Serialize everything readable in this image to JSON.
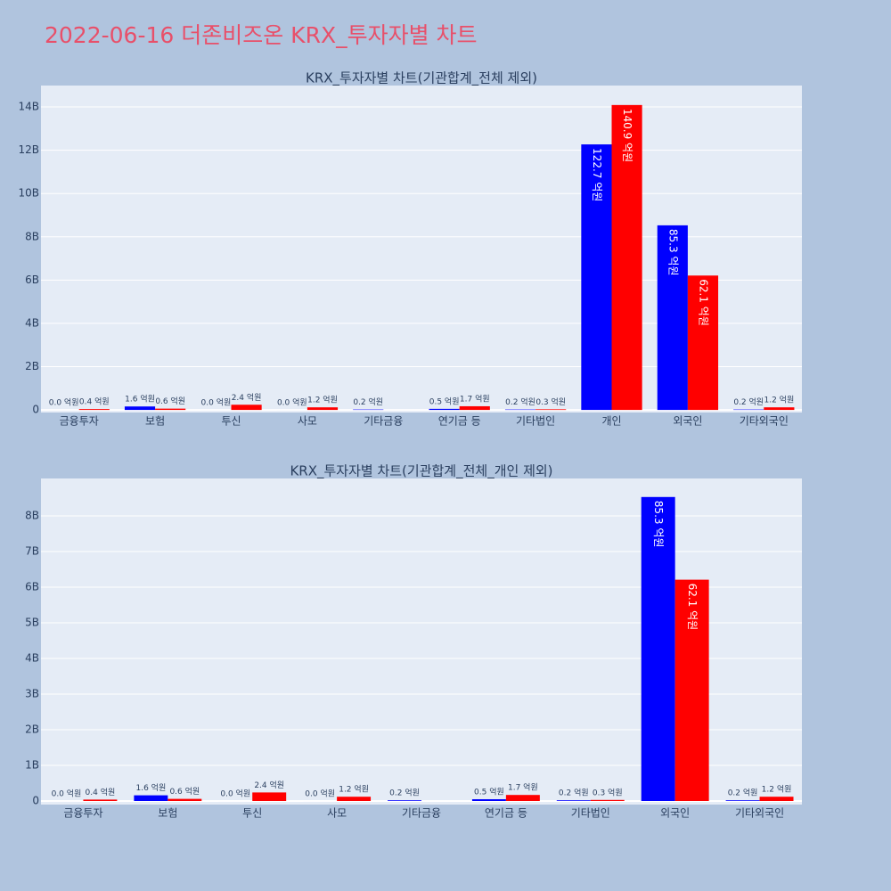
{
  "title": "2022-06-16 더존비즈온 KRX_투자자별 차트",
  "chart_data": [
    {
      "type": "bar",
      "title": "KRX_투자자별 차트(기관합계_전체 제외)",
      "categories": [
        "금융투자",
        "보험",
        "투신",
        "사모",
        "기타금융",
        "연기금 등",
        "기타법인",
        "개인",
        "외국인",
        "기타외국인"
      ],
      "series": [
        {
          "color": "#0000ff",
          "values": [
            0,
            160000000,
            0,
            0,
            20000000,
            50000000,
            20000000,
            12270000000,
            8530000000,
            20000000
          ],
          "value_labels": [
            "0.0 억원",
            "1.6 억원",
            "0.0 억원",
            "0.0 억원",
            "0.2 억원",
            "0.5 억원",
            "0.2 억원",
            "122.7 억원",
            "85.3 억원",
            "0.2 억원"
          ]
        },
        {
          "color": "#ff0000",
          "values": [
            40000000,
            60000000,
            240000000,
            120000000,
            null,
            170000000,
            30000000,
            14090000000,
            6210000000,
            120000000
          ],
          "value_labels": [
            "0.4 억원",
            "0.6 억원",
            "2.4 억원",
            "1.2 억원",
            null,
            "1.7 억원",
            "0.3 억원",
            "140.9 억원",
            "62.1 억원",
            "1.2 억원"
          ]
        }
      ],
      "ylim": [
        -120000000,
        14990000000
      ],
      "yticks": [
        0,
        {
          "value": 2000000000,
          "label": "2B"
        },
        {
          "value": 4000000000,
          "label": "4B"
        },
        {
          "value": 6000000000,
          "label": "6B"
        },
        {
          "value": 8000000000,
          "label": "8B"
        },
        {
          "value": 10000000000,
          "label": "10B"
        },
        {
          "value": 12000000000,
          "label": "12B"
        },
        {
          "value": 14000000000,
          "label": "14B"
        }
      ],
      "grid": true
    },
    {
      "type": "bar",
      "title": "KRX_투자자별 차트(기관합계_전체_개인 제외)",
      "categories": [
        "금융투자",
        "보험",
        "투신",
        "사모",
        "기타금융",
        "연기금 등",
        "기타법인",
        "외국인",
        "기타외국인"
      ],
      "series": [
        {
          "color": "#0000ff",
          "values": [
            0,
            160000000,
            0,
            0,
            20000000,
            50000000,
            20000000,
            8530000000,
            20000000
          ],
          "value_labels": [
            "0.0 억원",
            "1.6 억원",
            "0.0 억원",
            "0.0 억원",
            "0.2 억원",
            "0.5 억원",
            "0.2 억원",
            "85.3 억원",
            "0.2 억원"
          ]
        },
        {
          "color": "#ff0000",
          "values": [
            40000000,
            60000000,
            240000000,
            120000000,
            null,
            170000000,
            30000000,
            6210000000,
            120000000
          ],
          "value_labels": [
            "0.4 억원",
            "0.6 억원",
            "2.4 억원",
            "1.2 억원",
            null,
            "1.7 억원",
            "0.3 억원",
            "62.1 억원",
            "1.2 억원"
          ]
        }
      ],
      "ylim": [
        -100000000,
        9050000000
      ],
      "yticks": [
        0,
        {
          "value": 1000000000,
          "label": "1B"
        },
        {
          "value": 2000000000,
          "label": "2B"
        },
        {
          "value": 3000000000,
          "label": "3B"
        },
        {
          "value": 4000000000,
          "label": "4B"
        },
        {
          "value": 5000000000,
          "label": "5B"
        },
        {
          "value": 6000000000,
          "label": "6B"
        },
        {
          "value": 7000000000,
          "label": "7B"
        },
        {
          "value": 8000000000,
          "label": "8B"
        }
      ],
      "grid": true
    }
  ]
}
